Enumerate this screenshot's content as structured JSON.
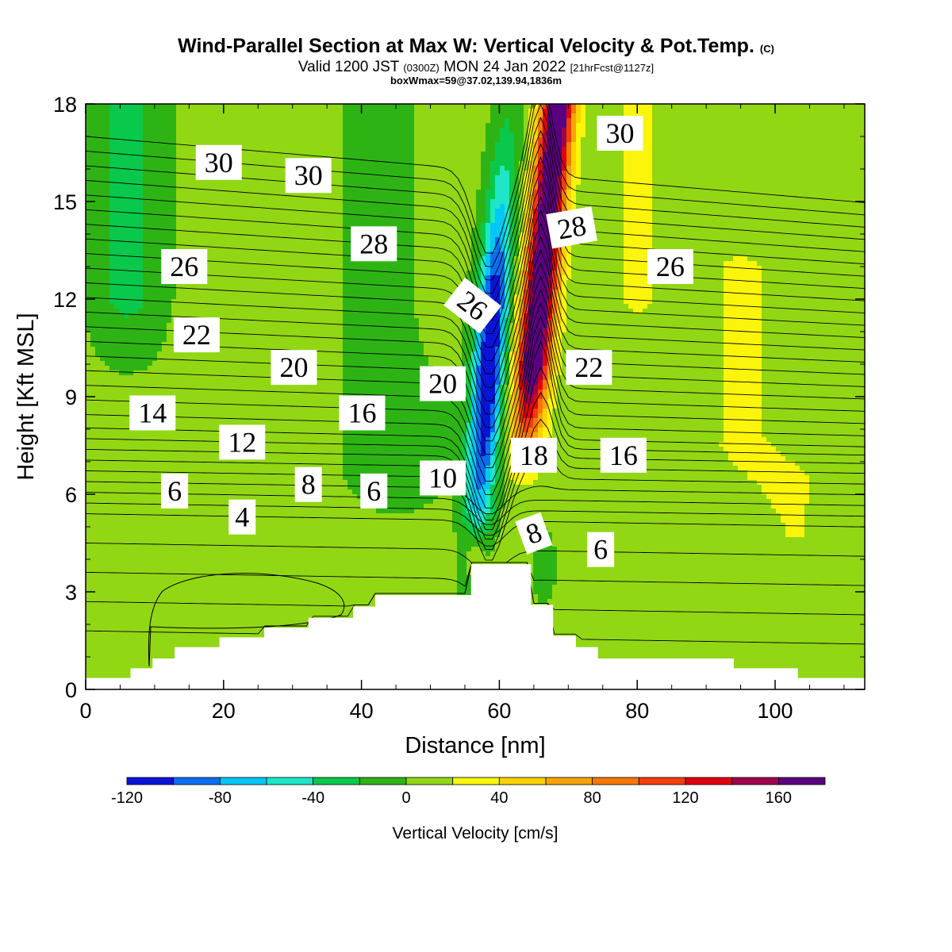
{
  "header": {
    "title": "Wind-Parallel Section at Max W: Vertical Velocity & Pot.Temp.",
    "title_suffix": "(C)",
    "valid_prefix": "Valid 1200 JST",
    "valid_utc": "(0300Z)",
    "valid_date": "MON 24 Jan 2022",
    "forecast": "[21hrFcst@1127z]",
    "box_info": "boxWmax=59@37.02,139.94,1836m"
  },
  "chart_data": {
    "type": "heatmap",
    "xlabel": "Distance [nm]",
    "ylabel": "Height [Kft MSL]",
    "xlim": [
      0,
      113
    ],
    "ylim": [
      0,
      18
    ],
    "x_ticks": [
      "0",
      "20",
      "40",
      "60",
      "80",
      "100"
    ],
    "y_ticks": [
      "0",
      "3",
      "6",
      "9",
      "12",
      "15",
      "18"
    ],
    "colorbar": {
      "label": "Vertical Velocity [cm/s]",
      "levels": [
        -120,
        -100,
        -80,
        -60,
        -40,
        -20,
        0,
        20,
        40,
        60,
        80,
        100,
        120,
        140,
        160,
        180
      ],
      "tick_labels": [
        "-120",
        "-80",
        "-40",
        "0",
        "40",
        "80",
        "120",
        "160"
      ],
      "colors": [
        "#0a14d8",
        "#0a6ef0",
        "#00c8f5",
        "#1ee6c8",
        "#0ac84b",
        "#2db414",
        "#91d714",
        "#faf50a",
        "#fad200",
        "#f5a50a",
        "#f57805",
        "#f53c0a",
        "#e1000f",
        "#a0004b",
        "#5a007f"
      ]
    },
    "theta_labels": [
      {
        "text": "30",
        "x": 19.3,
        "y": 16.2
      },
      {
        "text": "30",
        "x": 32.3,
        "y": 15.8
      },
      {
        "text": "26",
        "x": 14.3,
        "y": 13.0
      },
      {
        "text": "28",
        "x": 41.8,
        "y": 13.7
      },
      {
        "text": "22",
        "x": 16.1,
        "y": 10.9
      },
      {
        "text": "20",
        "x": 30.2,
        "y": 9.9
      },
      {
        "text": "14",
        "x": 9.7,
        "y": 8.5
      },
      {
        "text": "16",
        "x": 40.1,
        "y": 8.5
      },
      {
        "text": "12",
        "x": 22.7,
        "y": 7.6
      },
      {
        "text": "20",
        "x": 51.8,
        "y": 9.4
      },
      {
        "text": "26",
        "x": 56.1,
        "y": 11.8
      },
      {
        "text": "30",
        "x": 77.5,
        "y": 17.1
      },
      {
        "text": "28",
        "x": 70.5,
        "y": 14.2
      },
      {
        "text": "26",
        "x": 84.8,
        "y": 13.0
      },
      {
        "text": "22",
        "x": 73.0,
        "y": 9.9
      },
      {
        "text": "18",
        "x": 65.0,
        "y": 7.2
      },
      {
        "text": "16",
        "x": 78.0,
        "y": 7.2
      },
      {
        "text": "10",
        "x": 51.8,
        "y": 6.5
      },
      {
        "text": "8",
        "x": 32.3,
        "y": 6.3
      },
      {
        "text": "6",
        "x": 12.9,
        "y": 6.1
      },
      {
        "text": "6",
        "x": 41.8,
        "y": 6.1
      },
      {
        "text": "4",
        "x": 22.7,
        "y": 5.3
      },
      {
        "text": "8",
        "x": 65.0,
        "y": 4.8
      },
      {
        "text": "6",
        "x": 74.7,
        "y": 4.3
      }
    ],
    "terrain_nm": [
      [
        0,
        0.35
      ],
      [
        6.5,
        0.35
      ],
      [
        6.5,
        0.65
      ],
      [
        9.7,
        0.65
      ],
      [
        9.7,
        0.95
      ],
      [
        12.9,
        0.95
      ],
      [
        12.9,
        1.3
      ],
      [
        19.4,
        1.3
      ],
      [
        19.4,
        1.6
      ],
      [
        25.9,
        1.6
      ],
      [
        25.9,
        1.9
      ],
      [
        32.3,
        1.9
      ],
      [
        32.3,
        2.2
      ],
      [
        38.8,
        2.2
      ],
      [
        38.8,
        2.55
      ],
      [
        42.0,
        2.55
      ],
      [
        42.0,
        2.9
      ],
      [
        55.9,
        2.9
      ],
      [
        55.9,
        3.85
      ],
      [
        64.6,
        3.85
      ],
      [
        64.6,
        2.6
      ],
      [
        67.8,
        2.6
      ],
      [
        67.8,
        1.65
      ],
      [
        71.1,
        1.65
      ],
      [
        71.1,
        1.3
      ],
      [
        74.3,
        1.3
      ],
      [
        74.3,
        0.95
      ],
      [
        94.0,
        0.95
      ],
      [
        94.0,
        0.65
      ],
      [
        103.3,
        0.65
      ],
      [
        103.3,
        0.35
      ],
      [
        113,
        0.35
      ]
    ]
  }
}
